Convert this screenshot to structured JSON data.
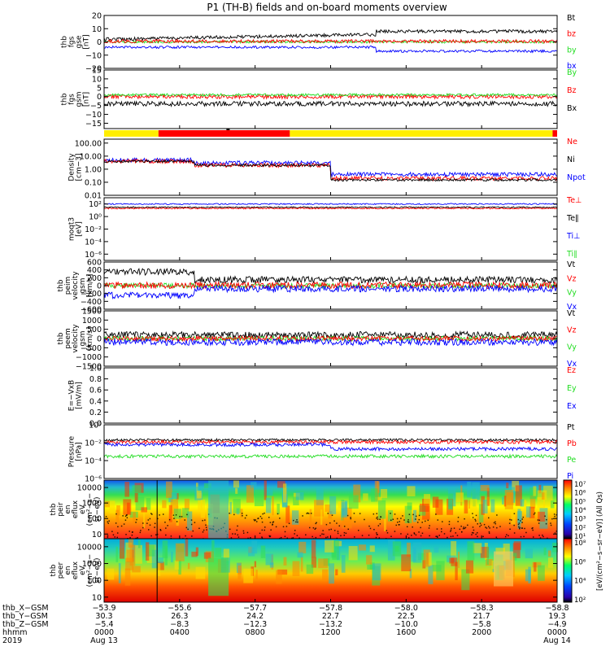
{
  "title": "P1 (TH-B) fields and on-board moments overview",
  "colors": {
    "black": "#000000",
    "red": "#ff0000",
    "green": "#22dd22",
    "blue": "#0000ff",
    "yellow": "#ffee00",
    "frame": "#000000"
  },
  "chart_data": [
    {
      "type": "line",
      "panel": 1,
      "ylabel": [
        "thb",
        "fgs",
        "gse",
        "[nT]"
      ],
      "ylim": [
        -20,
        20
      ],
      "yticks": [
        "20",
        "10",
        "0",
        "−10",
        "−20"
      ],
      "ytick_values": [
        20,
        10,
        0,
        -10,
        -20
      ],
      "legend": [
        {
          "label": "Bt",
          "color": "black"
        },
        {
          "label": "bz",
          "color": "red"
        },
        {
          "label": "by",
          "color": "green"
        },
        {
          "label": "bx",
          "color": "blue"
        }
      ]
    },
    {
      "type": "line",
      "panel": 2,
      "ylabel": [
        "thb",
        "fgs",
        "gsm",
        "[nT]"
      ],
      "ylim": [
        -18,
        15
      ],
      "yticks": [
        "15",
        "10",
        "5",
        "0",
        "−5",
        "−10",
        "−15"
      ],
      "ytick_values": [
        15,
        10,
        5,
        0,
        -5,
        -10,
        -15
      ],
      "legend": [
        {
          "label": "By",
          "color": "green"
        },
        {
          "label": "Bz",
          "color": "red"
        },
        {
          "label": "Bx",
          "color": "black"
        }
      ]
    },
    {
      "type": "bar",
      "panel": "mode-bar",
      "description_colors": [
        "yellow",
        "red",
        "yellow",
        "red"
      ]
    },
    {
      "type": "line",
      "panel": 3,
      "yscale": "log",
      "ylabel": [
        "Density",
        "[cm−3]"
      ],
      "ylim": [
        0.01,
        200
      ],
      "yticks": [
        "100.00",
        "10.00",
        "1.00",
        "0.10",
        "0.01"
      ],
      "ytick_values": [
        100,
        10,
        1,
        0.1,
        0.01
      ],
      "legend": [
        {
          "label": "Ne",
          "color": "red"
        },
        {
          "label": "Ni",
          "color": "black"
        },
        {
          "label": "Npot",
          "color": "blue"
        }
      ]
    },
    {
      "type": "line",
      "panel": 4,
      "yscale": "log",
      "ylabel": [
        "moqt3",
        "[eV]"
      ],
      "ylim": [
        1e-07,
        1000
      ],
      "yticks": [
        "10²",
        "10⁰",
        "10⁻²",
        "10⁻⁴",
        "10⁻⁶"
      ],
      "ytick_values": [
        100,
        1,
        0.01,
        0.0001,
        1e-06
      ],
      "legend": [
        {
          "label": "Te⊥",
          "color": "red"
        },
        {
          "label": "Te∥",
          "color": "black"
        },
        {
          "label": "Ti⊥",
          "color": "blue"
        },
        {
          "label": "Ti∥",
          "color": "green"
        }
      ]
    },
    {
      "type": "line",
      "panel": 5,
      "ylabel": [
        "thb",
        "peim",
        "velocity",
        "gsm",
        "[km/s]"
      ],
      "ylim": [
        -600,
        600
      ],
      "yticks": [
        "600",
        "400",
        "200",
        "0",
        "−200",
        "−400",
        "−600"
      ],
      "ytick_values": [
        600,
        400,
        200,
        0,
        -200,
        -400,
        -600
      ],
      "legend": [
        {
          "label": "Vt",
          "color": "black"
        },
        {
          "label": "Vz",
          "color": "red"
        },
        {
          "label": "Vy",
          "color": "green"
        },
        {
          "label": "Vx",
          "color": "blue"
        }
      ]
    },
    {
      "type": "line",
      "panel": 6,
      "ylabel": [
        "thb",
        "peem",
        "velocity",
        "gsm",
        "[km/s]"
      ],
      "ylim": [
        -1500,
        1500
      ],
      "yticks": [
        "1500",
        "1000",
        "500",
        "0",
        "−500",
        "−1000",
        "−1500"
      ],
      "ytick_values": [
        1500,
        1000,
        500,
        0,
        -500,
        -1000,
        -1500
      ],
      "legend": [
        {
          "label": "Vt",
          "color": "black"
        },
        {
          "label": "Vz",
          "color": "red"
        },
        {
          "label": "Vy",
          "color": "green"
        },
        {
          "label": "Vx",
          "color": "blue"
        }
      ]
    },
    {
      "type": "line",
      "panel": 7,
      "ylabel": [
        "E=−VxB",
        "[mV/m]"
      ],
      "ylim": [
        0,
        1
      ],
      "yticks": [
        "1.0",
        "0.8",
        "0.6",
        "0.4",
        "0.2",
        "0.0"
      ],
      "ytick_values": [
        1,
        0.8,
        0.6,
        0.4,
        0.2,
        0
      ],
      "legend": [
        {
          "label": "Ez",
          "color": "red"
        },
        {
          "label": "Ey",
          "color": "green"
        },
        {
          "label": "Ex",
          "color": "blue"
        }
      ]
    },
    {
      "type": "line",
      "panel": 8,
      "yscale": "log",
      "ylabel": [
        "Pressure",
        "[nPa]"
      ],
      "ylim": [
        1e-06,
        1
      ],
      "yticks": [
        "10⁰",
        "10⁻²",
        "10⁻⁴",
        "10⁻⁶"
      ],
      "ytick_values": [
        1,
        0.01,
        0.0001,
        1e-06
      ],
      "legend": [
        {
          "label": "Pt",
          "color": "black"
        },
        {
          "label": "Pb",
          "color": "red"
        },
        {
          "label": "Pe",
          "color": "green"
        },
        {
          "label": "Pi",
          "color": "blue"
        }
      ]
    },
    {
      "type": "heatmap",
      "panel": 9,
      "yscale": "log",
      "ylabel": [
        "thb",
        "peir",
        "en",
        "eflux",
        "eV",
        "(cm²−s−",
        "sr−eV)"
      ],
      "ylim": [
        5,
        30000
      ],
      "yticks": [
        "10000",
        "1000",
        "100",
        "10"
      ],
      "ytick_values": [
        10000,
        1000,
        100,
        10
      ],
      "colorbar_labels": [
        "10⁷",
        "10⁶",
        "10⁵",
        "10⁴",
        "10³",
        "10²",
        "10¹"
      ],
      "colorbar_title": "[eV/(cm²−s−sr−eV)] (All Qs)"
    },
    {
      "type": "heatmap",
      "panel": 10,
      "yscale": "log",
      "ylabel": [
        "thb",
        "peer",
        "en",
        "eflux",
        "eV",
        "(cm²−s−",
        "sr−eV)"
      ],
      "ylim": [
        5,
        30000
      ],
      "yticks": [
        "10000",
        "1000",
        "100",
        "10"
      ],
      "ytick_values": [
        10000,
        1000,
        100,
        10
      ],
      "colorbar_labels": [
        "10⁸",
        "10⁶",
        "10⁴",
        "10²"
      ],
      "colorbar_title": "[eV/(cm²−s−sr−eV)]"
    }
  ],
  "x_axis": {
    "rows": [
      {
        "label": "thb_X−GSM",
        "values": [
          "−53.9",
          "−55.6",
          "−57.7",
          "−57.8",
          "−58.0",
          "−58.3",
          "−58.8"
        ]
      },
      {
        "label": "thb_Y−GSM",
        "values": [
          "30.3",
          "26.3",
          "24.2",
          "22.7",
          "22.5",
          "21.7",
          "19.3"
        ]
      },
      {
        "label": "thb_Z−GSM",
        "values": [
          "−5.4",
          "−8.3",
          "−12.3",
          "−13.2",
          "−10.0",
          "−5.8",
          "−4.9"
        ]
      },
      {
        "label": "hhmm",
        "values": [
          "0000",
          "0400",
          "0800",
          "1200",
          "1600",
          "2000",
          "0000"
        ]
      }
    ],
    "year": "2019",
    "dates": [
      {
        "index": 0,
        "text": "Aug 13"
      },
      {
        "index": 6,
        "text": "Aug 14"
      }
    ],
    "tick_hours": [
      0,
      4,
      8,
      12,
      16,
      20,
      24
    ]
  }
}
